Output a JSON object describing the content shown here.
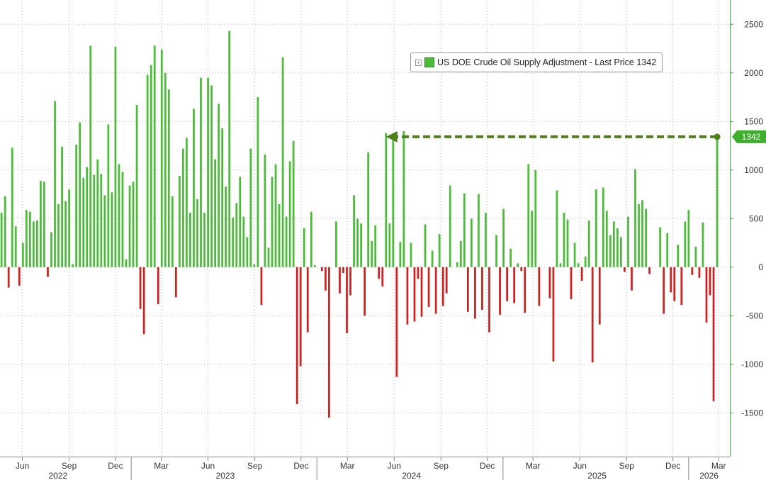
{
  "colors": {
    "positive": "#4cbb3a",
    "negative": "#cc2222",
    "arrow": "#4f7e1c",
    "grid": "#bbbbbb",
    "axis": "#3aa83a"
  },
  "legend": {
    "text": "US DOE Crude Oil Supply Adjustment - Last Price 1342",
    "plus_icon": "expand-plus-icon"
  },
  "last_price_tag": "1342",
  "chart_data": {
    "type": "bar",
    "title": "",
    "xlabel": "",
    "ylabel": "",
    "ylim": [
      -1950,
      2750
    ],
    "yticks": [
      2500,
      2000,
      1500,
      1000,
      500,
      0,
      -500,
      -1000,
      -1500
    ],
    "grid": true,
    "legend_position": "top-right",
    "x_range": [
      "2022-04-18",
      "2026-03-23"
    ],
    "x_ticks": [
      {
        "label": "Jun",
        "date": "2022-06-01"
      },
      {
        "label": "Sep",
        "date": "2022-09-01"
      },
      {
        "label": "Dec",
        "date": "2022-12-01"
      },
      {
        "label": "Mar",
        "date": "2023-03-01"
      },
      {
        "label": "Jun",
        "date": "2023-06-01"
      },
      {
        "label": "Sep",
        "date": "2023-09-01"
      },
      {
        "label": "Dec",
        "date": "2023-12-01"
      },
      {
        "label": "Mar",
        "date": "2024-03-01"
      },
      {
        "label": "Jun",
        "date": "2024-06-01"
      },
      {
        "label": "Sep",
        "date": "2024-09-01"
      },
      {
        "label": "Dec",
        "date": "2024-12-01"
      },
      {
        "label": "Mar",
        "date": "2025-03-01"
      },
      {
        "label": "Jun",
        "date": "2025-06-01"
      },
      {
        "label": "Sep",
        "date": "2025-09-01"
      },
      {
        "label": "Dec",
        "date": "2025-12-01"
      },
      {
        "label": "Mar",
        "date": "2026-03-01"
      }
    ],
    "year_labels": [
      {
        "label": "2022",
        "date": "2022-08-10"
      },
      {
        "label": "2023",
        "date": "2023-07-05"
      },
      {
        "label": "2024",
        "date": "2024-07-05"
      },
      {
        "label": "2025",
        "date": "2025-07-05"
      },
      {
        "label": "2026",
        "date": "2026-02-10"
      }
    ],
    "year_separators": [
      "2023-01-01",
      "2024-01-01",
      "2025-01-01",
      "2026-01-01"
    ],
    "series": [
      {
        "name": "US DOE Crude Oil Supply Adjustment",
        "start_date": "2022-04-21",
        "interval_days": 7,
        "values": [
          560,
          730,
          -210,
          1230,
          420,
          -190,
          250,
          590,
          570,
          470,
          480,
          890,
          880,
          -100,
          360,
          1710,
          650,
          1240,
          680,
          800,
          30,
          1260,
          1490,
          920,
          1030,
          2280,
          950,
          1110,
          960,
          740,
          1470,
          770,
          2270,
          1060,
          980,
          80,
          840,
          880,
          1670,
          -430,
          -690,
          1980,
          2080,
          2280,
          -380,
          2240,
          2000,
          1830,
          730,
          -310,
          940,
          1220,
          1330,
          560,
          1630,
          700,
          1950,
          560,
          1950,
          1870,
          1110,
          1680,
          1430,
          830,
          2430,
          510,
          660,
          930,
          520,
          310,
          1220,
          30,
          1750,
          -390,
          1160,
          200,
          930,
          1060,
          650,
          2160,
          520,
          1090,
          1300,
          -1410,
          -1020,
          400,
          -670,
          570,
          20,
          0,
          -40,
          -240,
          -1550,
          0,
          470,
          -270,
          -60,
          -680,
          -290,
          740,
          500,
          450,
          -500,
          1180,
          270,
          430,
          -120,
          -200,
          1380,
          450,
          1350,
          -1130,
          260,
          1400,
          -590,
          250,
          -560,
          -120,
          -510,
          440,
          -410,
          170,
          -480,
          340,
          -400,
          -270,
          840,
          0,
          50,
          270,
          760,
          -460,
          500,
          -530,
          750,
          -440,
          560,
          -670,
          0,
          330,
          -490,
          600,
          -350,
          190,
          -370,
          40,
          -40,
          -470,
          1060,
          580,
          1000,
          -400,
          0,
          0,
          -320,
          -970,
          790,
          40,
          560,
          490,
          -330,
          250,
          40,
          -140,
          110,
          480,
          -980,
          800,
          -590,
          820,
          580,
          330,
          470,
          400,
          310,
          -50,
          520,
          -240,
          1010,
          650,
          690,
          600,
          -70,
          0,
          0,
          410,
          -480,
          350,
          -260,
          -350,
          230,
          -390,
          470,
          590,
          -80,
          210,
          -110,
          460,
          -570,
          -290,
          -1380,
          1342
        ]
      }
    ],
    "annotations": [
      {
        "type": "dashed-arrow",
        "from_date": "2026-02-26",
        "to_date": "2024-05-16",
        "value": 1342
      }
    ],
    "last_value": 1342
  }
}
